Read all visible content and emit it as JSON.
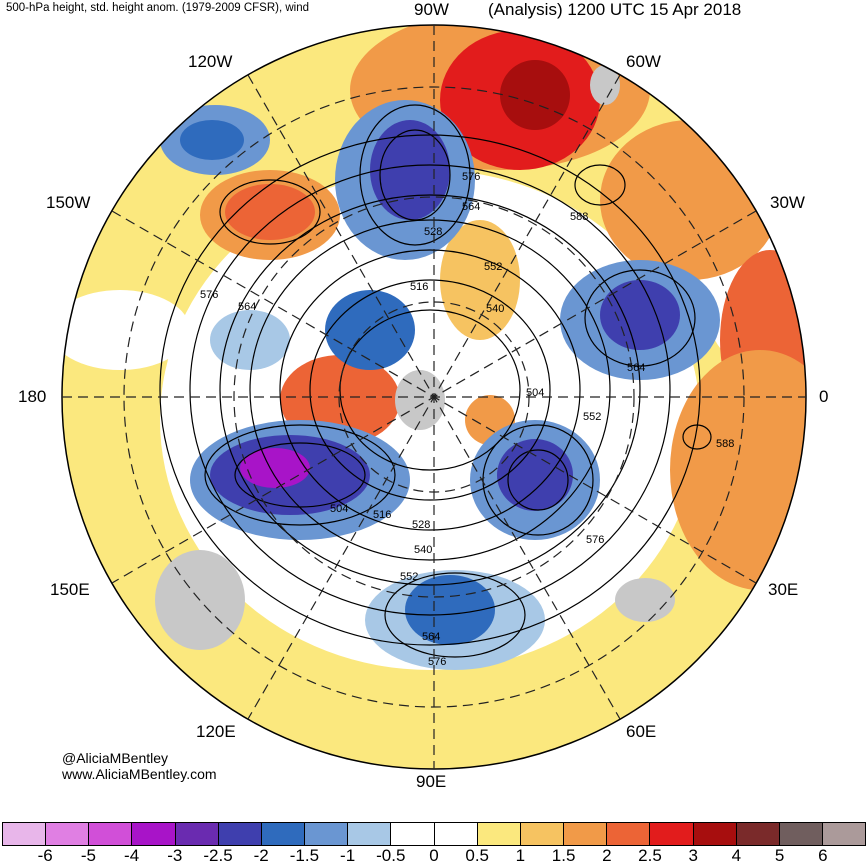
{
  "header": {
    "left_title": "500-hPa height, std. height anom. (1979-2009 CFSR), wind",
    "right_title": "(Analysis) 1200 UTC 15 Apr 2018"
  },
  "longitude_labels": {
    "top": "90W",
    "upper_left": "120W",
    "upper_right": "60W",
    "left_upper": "150W",
    "right_upper": "30W",
    "left": "180",
    "right": "0",
    "left_lower": "150E",
    "right_lower": "30E",
    "lower_left": "120E",
    "lower_right": "60E",
    "bottom": "90E"
  },
  "contour_labels": [
    "576",
    "564",
    "528",
    "552",
    "540",
    "516",
    "576",
    "564",
    "504",
    "552",
    "564",
    "588",
    "588",
    "504",
    "516",
    "528",
    "540",
    "552",
    "564",
    "576",
    "576"
  ],
  "credits": {
    "handle": "@AliciaMBentley",
    "website": "www.AliciaMBentley.com"
  },
  "colorbar": {
    "colors": [
      "#e8b6ea",
      "#e07fe3",
      "#d14fd8",
      "#a814c8",
      "#6a2bb0",
      "#3f3fae",
      "#2f6bbd",
      "#6a96d2",
      "#a8c8e6",
      "#ffffff",
      "#ffffff",
      "#fbe87e",
      "#f6c361",
      "#f19a48",
      "#ec6436",
      "#e21c1c",
      "#a70e0e",
      "#7a2a2a",
      "#705e5e",
      "#ab9a9a"
    ],
    "tick_labels": [
      "-6",
      "-5",
      "-4",
      "-3",
      "-2.5",
      "-2",
      "-1.5",
      "-1",
      "-0.5",
      "0",
      "0.5",
      "1",
      "1.5",
      "2",
      "2.5",
      "3",
      "4",
      "5",
      "6"
    ]
  },
  "colors": {
    "land_gray": "#c8c8c8",
    "contour": "#000000"
  }
}
